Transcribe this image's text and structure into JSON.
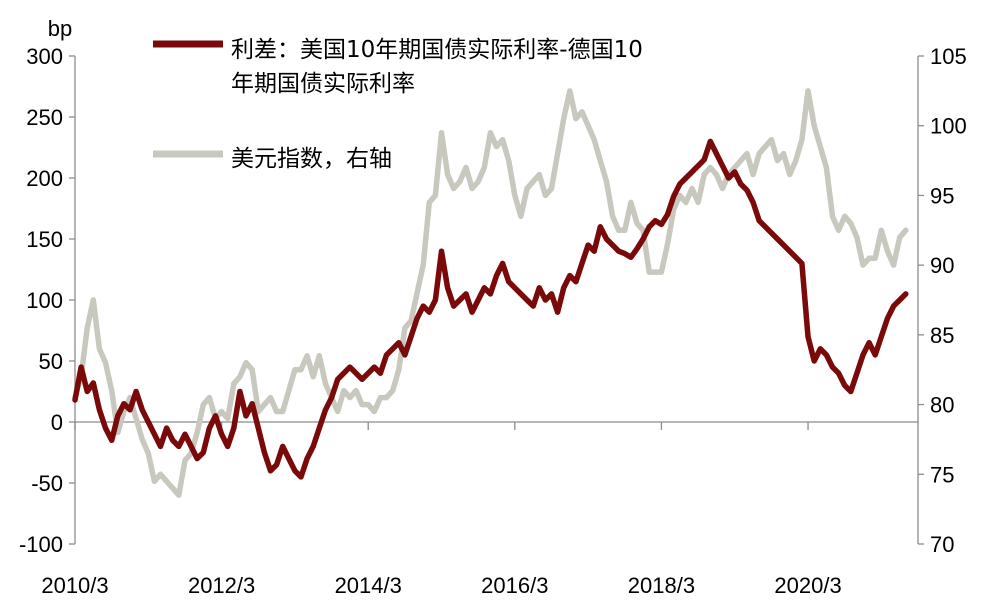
{
  "chart_data": {
    "type": "line",
    "left_axis": {
      "unit_label": "bp",
      "ylim": [
        -100,
        300
      ],
      "ticks": [
        300,
        250,
        200,
        150,
        100,
        50,
        0,
        -50,
        -100
      ],
      "tick_labels": [
        "300",
        "250",
        "200",
        "150",
        "100",
        "50",
        "0",
        "-50",
        "-100"
      ]
    },
    "right_axis": {
      "ylim": [
        70,
        105
      ],
      "ticks": [
        105,
        100,
        95,
        90,
        85,
        80,
        75,
        70
      ],
      "tick_labels": [
        "105",
        "100",
        "95",
        "90",
        "85",
        "80",
        "75",
        "70"
      ]
    },
    "x_axis": {
      "range": [
        "2010-03",
        "2021-09"
      ],
      "tick_dates": [
        "2010-03",
        "2012-03",
        "2014-03",
        "2016-03",
        "2018-03",
        "2020-03"
      ],
      "tick_labels": [
        "2010/3",
        "2012/3",
        "2014/3",
        "2016/3",
        "2018/3",
        "2020/3"
      ]
    },
    "legend": {
      "placement": "top-left",
      "entries": [
        {
          "lines": [
            "利差：美国10年期国债实际利率-德国10",
            "年期国债实际利率"
          ],
          "color": "#7a0a0a"
        },
        {
          "lines": [
            "美元指数，右轴"
          ],
          "color": "#c8c8bf"
        }
      ]
    },
    "series": [
      {
        "name": "利差：美国10年期国债实际利率-德国10年期国债实际利率",
        "axis": "left",
        "color": "#7a0a0a",
        "points": [
          [
            "2010-03",
            18
          ],
          [
            "2010-04",
            45
          ],
          [
            "2010-05",
            25
          ],
          [
            "2010-06",
            32
          ],
          [
            "2010-07",
            10
          ],
          [
            "2010-08",
            -5
          ],
          [
            "2010-09",
            -15
          ],
          [
            "2010-10",
            5
          ],
          [
            "2010-11",
            15
          ],
          [
            "2010-12",
            10
          ],
          [
            "2011-01",
            25
          ],
          [
            "2011-02",
            10
          ],
          [
            "2011-03",
            0
          ],
          [
            "2011-04",
            -10
          ],
          [
            "2011-05",
            -20
          ],
          [
            "2011-06",
            -5
          ],
          [
            "2011-07",
            -15
          ],
          [
            "2011-08",
            -20
          ],
          [
            "2011-09",
            -10
          ],
          [
            "2011-10",
            -20
          ],
          [
            "2011-11",
            -30
          ],
          [
            "2011-12",
            -25
          ],
          [
            "2012-01",
            -5
          ],
          [
            "2012-02",
            5
          ],
          [
            "2012-03",
            -10
          ],
          [
            "2012-04",
            -20
          ],
          [
            "2012-05",
            -5
          ],
          [
            "2012-06",
            25
          ],
          [
            "2012-07",
            5
          ],
          [
            "2012-08",
            15
          ],
          [
            "2012-09",
            -5
          ],
          [
            "2012-10",
            -25
          ],
          [
            "2012-11",
            -40
          ],
          [
            "2012-12",
            -35
          ],
          [
            "2013-01",
            -20
          ],
          [
            "2013-02",
            -30
          ],
          [
            "2013-03",
            -40
          ],
          [
            "2013-04",
            -45
          ],
          [
            "2013-05",
            -30
          ],
          [
            "2013-06",
            -20
          ],
          [
            "2013-07",
            -5
          ],
          [
            "2013-08",
            10
          ],
          [
            "2013-09",
            20
          ],
          [
            "2013-10",
            35
          ],
          [
            "2013-11",
            40
          ],
          [
            "2013-12",
            45
          ],
          [
            "2014-01",
            40
          ],
          [
            "2014-02",
            35
          ],
          [
            "2014-03",
            40
          ],
          [
            "2014-04",
            45
          ],
          [
            "2014-05",
            40
          ],
          [
            "2014-06",
            55
          ],
          [
            "2014-07",
            60
          ],
          [
            "2014-08",
            65
          ],
          [
            "2014-09",
            55
          ],
          [
            "2014-10",
            70
          ],
          [
            "2014-11",
            85
          ],
          [
            "2014-12",
            95
          ],
          [
            "2015-01",
            90
          ],
          [
            "2015-02",
            100
          ],
          [
            "2015-03",
            140
          ],
          [
            "2015-04",
            110
          ],
          [
            "2015-05",
            95
          ],
          [
            "2015-06",
            100
          ],
          [
            "2015-07",
            105
          ],
          [
            "2015-08",
            90
          ],
          [
            "2015-09",
            100
          ],
          [
            "2015-10",
            110
          ],
          [
            "2015-11",
            105
          ],
          [
            "2015-12",
            120
          ],
          [
            "2016-01",
            130
          ],
          [
            "2016-02",
            115
          ],
          [
            "2016-03",
            110
          ],
          [
            "2016-04",
            105
          ],
          [
            "2016-05",
            100
          ],
          [
            "2016-06",
            95
          ],
          [
            "2016-07",
            110
          ],
          [
            "2016-08",
            100
          ],
          [
            "2016-09",
            105
          ],
          [
            "2016-10",
            90
          ],
          [
            "2016-11",
            110
          ],
          [
            "2016-12",
            120
          ],
          [
            "2017-01",
            115
          ],
          [
            "2017-02",
            130
          ],
          [
            "2017-03",
            145
          ],
          [
            "2017-04",
            140
          ],
          [
            "2017-05",
            160
          ],
          [
            "2017-06",
            150
          ],
          [
            "2017-07",
            145
          ],
          [
            "2017-08",
            140
          ],
          [
            "2017-09",
            138
          ],
          [
            "2017-10",
            135
          ],
          [
            "2017-11",
            142
          ],
          [
            "2017-12",
            150
          ],
          [
            "2018-01",
            160
          ],
          [
            "2018-02",
            165
          ],
          [
            "2018-03",
            162
          ],
          [
            "2018-04",
            170
          ],
          [
            "2018-05",
            185
          ],
          [
            "2018-06",
            195
          ],
          [
            "2018-07",
            200
          ],
          [
            "2018-08",
            205
          ],
          [
            "2018-09",
            210
          ],
          [
            "2018-10",
            215
          ],
          [
            "2018-11",
            230
          ],
          [
            "2018-12",
            220
          ],
          [
            "2019-01",
            210
          ],
          [
            "2019-02",
            200
          ],
          [
            "2019-03",
            205
          ],
          [
            "2019-04",
            195
          ],
          [
            "2019-05",
            190
          ],
          [
            "2019-06",
            180
          ],
          [
            "2019-07",
            165
          ],
          [
            "2019-08",
            160
          ],
          [
            "2019-09",
            155
          ],
          [
            "2019-10",
            150
          ],
          [
            "2019-11",
            145
          ],
          [
            "2019-12",
            140
          ],
          [
            "2020-01",
            135
          ],
          [
            "2020-02",
            130
          ],
          [
            "2020-03",
            70
          ],
          [
            "2020-04",
            50
          ],
          [
            "2020-05",
            60
          ],
          [
            "2020-06",
            55
          ],
          [
            "2020-07",
            45
          ],
          [
            "2020-08",
            40
          ],
          [
            "2020-09",
            30
          ],
          [
            "2020-10",
            25
          ],
          [
            "2020-11",
            40
          ],
          [
            "2020-12",
            55
          ],
          [
            "2021-01",
            65
          ],
          [
            "2021-02",
            55
          ],
          [
            "2021-03",
            70
          ],
          [
            "2021-04",
            85
          ],
          [
            "2021-05",
            95
          ],
          [
            "2021-06",
            100
          ],
          [
            "2021-07",
            105
          ]
        ]
      },
      {
        "name": "美元指数，右轴",
        "axis": "right",
        "color": "#c8c8bf",
        "points": [
          [
            "2010-03",
            80.5
          ],
          [
            "2010-04",
            82.0
          ],
          [
            "2010-05",
            85.5
          ],
          [
            "2010-06",
            87.5
          ],
          [
            "2010-07",
            84.0
          ],
          [
            "2010-08",
            83.0
          ],
          [
            "2010-09",
            81.0
          ],
          [
            "2010-10",
            78.0
          ],
          [
            "2010-11",
            79.5
          ],
          [
            "2010-12",
            80.5
          ],
          [
            "2011-01",
            79.0
          ],
          [
            "2011-02",
            77.5
          ],
          [
            "2011-03",
            76.5
          ],
          [
            "2011-04",
            74.5
          ],
          [
            "2011-05",
            75.0
          ],
          [
            "2011-06",
            74.5
          ],
          [
            "2011-07",
            74.0
          ],
          [
            "2011-08",
            73.5
          ],
          [
            "2011-09",
            76.0
          ],
          [
            "2011-10",
            76.5
          ],
          [
            "2011-11",
            78.0
          ],
          [
            "2011-12",
            80.0
          ],
          [
            "2012-01",
            80.5
          ],
          [
            "2012-02",
            79.0
          ],
          [
            "2012-03",
            79.5
          ],
          [
            "2012-04",
            79.0
          ],
          [
            "2012-05",
            81.5
          ],
          [
            "2012-06",
            82.0
          ],
          [
            "2012-07",
            83.0
          ],
          [
            "2012-08",
            82.5
          ],
          [
            "2012-09",
            79.5
          ],
          [
            "2012-10",
            80.0
          ],
          [
            "2012-11",
            80.5
          ],
          [
            "2012-12",
            79.5
          ],
          [
            "2013-01",
            79.5
          ],
          [
            "2013-02",
            81.0
          ],
          [
            "2013-03",
            82.5
          ],
          [
            "2013-04",
            82.5
          ],
          [
            "2013-05",
            83.5
          ],
          [
            "2013-06",
            82.0
          ],
          [
            "2013-07",
            83.5
          ],
          [
            "2013-08",
            81.5
          ],
          [
            "2013-09",
            80.5
          ],
          [
            "2013-10",
            79.5
          ],
          [
            "2013-11",
            81.0
          ],
          [
            "2013-12",
            80.5
          ],
          [
            "2014-01",
            81.0
          ],
          [
            "2014-02",
            80.0
          ],
          [
            "2014-03",
            80.0
          ],
          [
            "2014-04",
            79.5
          ],
          [
            "2014-05",
            80.5
          ],
          [
            "2014-06",
            80.5
          ],
          [
            "2014-07",
            81.0
          ],
          [
            "2014-08",
            82.5
          ],
          [
            "2014-09",
            85.5
          ],
          [
            "2014-10",
            86.0
          ],
          [
            "2014-11",
            88.0
          ],
          [
            "2014-12",
            90.0
          ],
          [
            "2015-01",
            94.5
          ],
          [
            "2015-02",
            95.0
          ],
          [
            "2015-03",
            99.5
          ],
          [
            "2015-04",
            96.5
          ],
          [
            "2015-05",
            95.5
          ],
          [
            "2015-06",
            96.0
          ],
          [
            "2015-07",
            97.0
          ],
          [
            "2015-08",
            95.5
          ],
          [
            "2015-09",
            96.0
          ],
          [
            "2015-10",
            97.0
          ],
          [
            "2015-11",
            99.5
          ],
          [
            "2015-12",
            98.5
          ],
          [
            "2016-01",
            99.0
          ],
          [
            "2016-02",
            97.5
          ],
          [
            "2016-03",
            95.0
          ],
          [
            "2016-04",
            93.5
          ],
          [
            "2016-05",
            95.5
          ],
          [
            "2016-06",
            96.0
          ],
          [
            "2016-07",
            96.5
          ],
          [
            "2016-08",
            95.0
          ],
          [
            "2016-09",
            95.5
          ],
          [
            "2016-10",
            98.0
          ],
          [
            "2016-11",
            100.5
          ],
          [
            "2016-12",
            102.5
          ],
          [
            "2017-01",
            100.5
          ],
          [
            "2017-02",
            101.0
          ],
          [
            "2017-03",
            100.0
          ],
          [
            "2017-04",
            99.0
          ],
          [
            "2017-05",
            97.5
          ],
          [
            "2017-06",
            96.0
          ],
          [
            "2017-07",
            93.5
          ],
          [
            "2017-08",
            92.5
          ],
          [
            "2017-09",
            92.5
          ],
          [
            "2017-10",
            94.5
          ],
          [
            "2017-11",
            93.0
          ],
          [
            "2017-12",
            92.5
          ],
          [
            "2018-01",
            89.5
          ],
          [
            "2018-02",
            89.5
          ],
          [
            "2018-03",
            89.5
          ],
          [
            "2018-04",
            91.5
          ],
          [
            "2018-05",
            94.0
          ],
          [
            "2018-06",
            95.0
          ],
          [
            "2018-07",
            94.5
          ],
          [
            "2018-08",
            95.5
          ],
          [
            "2018-09",
            94.5
          ],
          [
            "2018-10",
            96.5
          ],
          [
            "2018-11",
            97.0
          ],
          [
            "2018-12",
            96.5
          ],
          [
            "2019-01",
            95.5
          ],
          [
            "2019-02",
            96.5
          ],
          [
            "2019-03",
            97.0
          ],
          [
            "2019-04",
            97.5
          ],
          [
            "2019-05",
            98.0
          ],
          [
            "2019-06",
            96.5
          ],
          [
            "2019-07",
            98.0
          ],
          [
            "2019-08",
            98.5
          ],
          [
            "2019-09",
            99.0
          ],
          [
            "2019-10",
            97.5
          ],
          [
            "2019-11",
            98.0
          ],
          [
            "2019-12",
            96.5
          ],
          [
            "2020-01",
            97.5
          ],
          [
            "2020-02",
            99.0
          ],
          [
            "2020-03",
            102.5
          ],
          [
            "2020-04",
            100.0
          ],
          [
            "2020-05",
            98.5
          ],
          [
            "2020-06",
            97.0
          ],
          [
            "2020-07",
            93.5
          ],
          [
            "2020-08",
            92.5
          ],
          [
            "2020-09",
            93.5
          ],
          [
            "2020-10",
            93.0
          ],
          [
            "2020-11",
            92.0
          ],
          [
            "2020-12",
            90.0
          ],
          [
            "2021-01",
            90.5
          ],
          [
            "2021-02",
            90.5
          ],
          [
            "2021-03",
            92.5
          ],
          [
            "2021-04",
            91.0
          ],
          [
            "2021-05",
            90.0
          ],
          [
            "2021-06",
            92.0
          ],
          [
            "2021-07",
            92.5
          ]
        ]
      }
    ]
  }
}
